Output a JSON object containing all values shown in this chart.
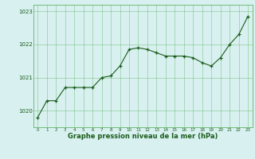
{
  "x": [
    0,
    1,
    2,
    3,
    4,
    5,
    6,
    7,
    8,
    9,
    10,
    11,
    12,
    13,
    14,
    15,
    16,
    17,
    18,
    19,
    20,
    21,
    22,
    23
  ],
  "y": [
    1019.8,
    1020.3,
    1020.3,
    1020.7,
    1020.7,
    1020.7,
    1020.7,
    1021.0,
    1021.05,
    1021.35,
    1021.85,
    1021.9,
    1021.85,
    1021.75,
    1021.65,
    1021.65,
    1021.65,
    1021.6,
    1021.45,
    1021.35,
    1021.6,
    1022.0,
    1022.3,
    1022.85
  ],
  "ylim": [
    1019.5,
    1023.2
  ],
  "yticks": [
    1020,
    1021,
    1022,
    1023
  ],
  "xticks": [
    0,
    1,
    2,
    3,
    4,
    5,
    6,
    7,
    8,
    9,
    10,
    11,
    12,
    13,
    14,
    15,
    16,
    17,
    18,
    19,
    20,
    21,
    22,
    23
  ],
  "line_color": "#1a5c1a",
  "marker_color": "#1a5c1a",
  "bg_color": "#d8f0f0",
  "grid_color": "#4aaa4a",
  "xlabel": "Graphe pression niveau de la mer (hPa)",
  "xlabel_color": "#1a5c1a",
  "tick_color": "#1a5c1a"
}
